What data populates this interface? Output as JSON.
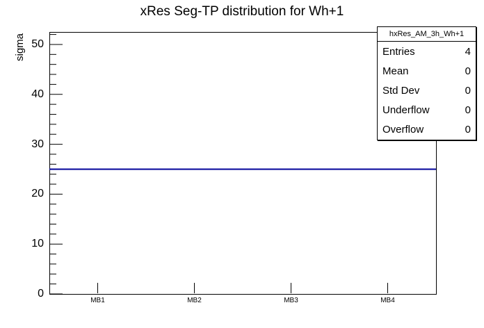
{
  "window": {
    "background": "#ffffff"
  },
  "title": "xRes Seg-TP distribution for Wh+1",
  "chart_data": {
    "type": "bar",
    "subtype": "root-histogram-outline",
    "histogram_name": "hxRes_AM_3h_Wh+1",
    "categories": [
      "MB1",
      "MB2",
      "MB3",
      "MB4"
    ],
    "values": [
      25,
      25,
      25,
      25
    ],
    "title": "xRes Seg-TP distribution for Wh+1",
    "xlabel": "",
    "ylabel": "sigma",
    "ylim": [
      0,
      52.5
    ],
    "y_major_ticks": [
      0,
      10,
      20,
      30,
      40,
      50
    ],
    "y_minor_step": 2,
    "grid": false,
    "legend": false,
    "line_color": "#000099",
    "axis_color": "#000000",
    "stats": {
      "entries": 4,
      "mean": 0,
      "std_dev": 0,
      "underflow": 0,
      "overflow": 0
    }
  },
  "stats_box": {
    "header": "hxRes_AM_3h_Wh+1",
    "rows": [
      {
        "label": "Entries",
        "value": "4"
      },
      {
        "label": "Mean",
        "value": "0"
      },
      {
        "label": "Std Dev",
        "value": "0"
      },
      {
        "label": "Underflow",
        "value": "0"
      },
      {
        "label": "Overflow",
        "value": "0"
      }
    ]
  }
}
